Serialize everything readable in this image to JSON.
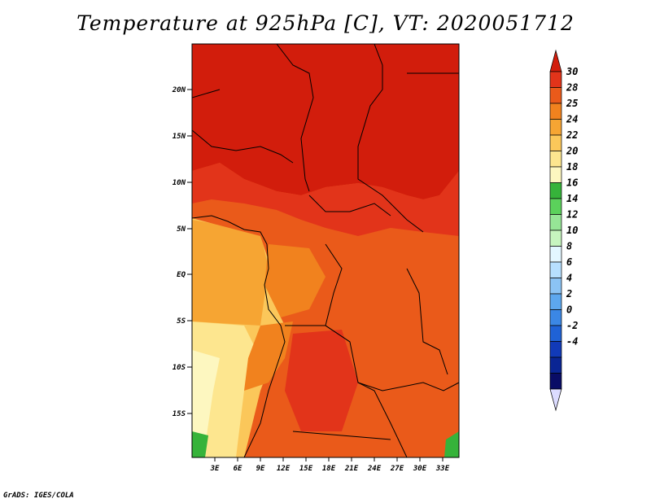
{
  "title": "Temperature at 925hPa [C], VT: 2020051712",
  "credit": "GrADS: IGES/COLA",
  "map": {
    "lat_ticks": [
      "20N",
      "15N",
      "10N",
      "5N",
      "EQ",
      "5S",
      "10S",
      "15S"
    ],
    "lon_ticks": [
      "3E",
      "6E",
      "9E",
      "12E",
      "15E",
      "18E",
      "21E",
      "24E",
      "27E",
      "30E",
      "33E"
    ]
  },
  "colorbar": {
    "labels": [
      "30",
      "28",
      "25",
      "24",
      "22",
      "20",
      "18",
      "16",
      "14",
      "12",
      "10",
      "8",
      "6",
      "4",
      "2",
      "0",
      "-2",
      "-4"
    ],
    "colors": [
      "#d21d0c",
      "#e2341a",
      "#ea5a1a",
      "#f1821e",
      "#f6a533",
      "#fbc75a",
      "#fde68f",
      "#fdf7c0",
      "#36b33a",
      "#5bd15b",
      "#96e596",
      "#c7f5bf",
      "#e3f7ff",
      "#b7e0ff",
      "#8bc3f4",
      "#5da7ee",
      "#3b87e5",
      "#1f62d6",
      "#113ab8",
      "#0a2594",
      "#090c66",
      "#dcdcff"
    ]
  },
  "colors": {
    "ocean_warm": "#f6a533",
    "ocean_mid": "#fbc75a",
    "ocean_cool": "#fde68f",
    "ocean_coolest": "#fdf7c0",
    "land_hot": "#d21d0c",
    "land_warm": "#e2341a",
    "land_mid": "#ea5a1a",
    "land_cool": "#f1821e",
    "highland": "#36b33a"
  }
}
